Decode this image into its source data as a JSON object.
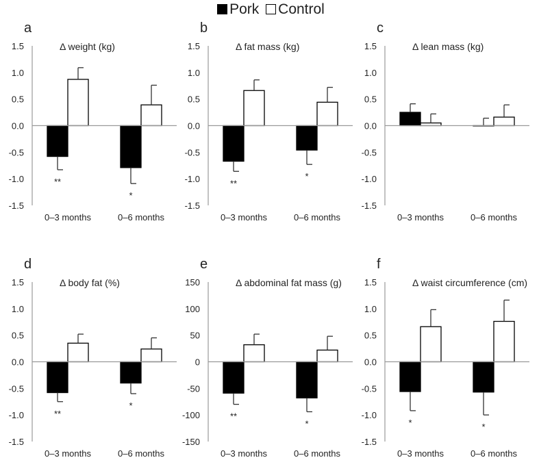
{
  "legend": {
    "pork_label": "Pork",
    "control_label": "Control",
    "pork_color": "#000000",
    "control_color": "#ffffff"
  },
  "chart_data": [
    {
      "type": "bar",
      "letter": "a",
      "title": "Δ weight (kg)",
      "ylim": [
        -1.5,
        1.5
      ],
      "ticks": [
        1.5,
        1.0,
        0.5,
        0.0,
        -0.5,
        -1.0,
        -1.5
      ],
      "tick_labels": [
        "1.5",
        "1.0",
        "0.5",
        "0.0",
        "-0.5",
        "-1.0",
        "-1.5"
      ],
      "categories": [
        "0–3 months",
        "0–6 months"
      ],
      "series": [
        {
          "name": "Pork",
          "values": [
            -0.58,
            -0.79
          ],
          "errors": [
            0.25,
            0.3
          ],
          "significance": [
            "**",
            "*"
          ]
        },
        {
          "name": "Control",
          "values": [
            0.87,
            0.39
          ],
          "errors": [
            0.22,
            0.37
          ],
          "significance": [
            "",
            ""
          ]
        }
      ]
    },
    {
      "type": "bar",
      "letter": "b",
      "title": "Δ fat mass (kg)",
      "ylim": [
        -1.5,
        1.5
      ],
      "ticks": [
        1.5,
        1.0,
        0.5,
        0.0,
        -0.5,
        -1.0,
        -1.5
      ],
      "tick_labels": [
        "1.5",
        "1.0",
        "0.5",
        "0.0",
        "-0.5",
        "-1.0",
        "-1.5"
      ],
      "categories": [
        "0–3 months",
        "0–6 months"
      ],
      "series": [
        {
          "name": "Pork",
          "values": [
            -0.67,
            -0.46
          ],
          "errors": [
            0.19,
            0.27
          ],
          "significance": [
            "**",
            "*"
          ]
        },
        {
          "name": "Control",
          "values": [
            0.66,
            0.44
          ],
          "errors": [
            0.2,
            0.28
          ],
          "significance": [
            "",
            ""
          ]
        }
      ]
    },
    {
      "type": "bar",
      "letter": "c",
      "title": "Δ lean mass (kg)",
      "ylim": [
        -1.5,
        1.5
      ],
      "ticks": [
        1.5,
        1.0,
        0.5,
        0.0,
        -0.5,
        -1.0,
        -1.5
      ],
      "tick_labels": [
        "1.5",
        "1.0",
        "0.5",
        "0.0",
        "-0.5",
        "-1.0",
        "-1.5"
      ],
      "categories": [
        "0–3 months",
        "0–6 months"
      ],
      "series": [
        {
          "name": "Pork",
          "values": [
            0.25,
            0.0
          ],
          "errors": [
            0.16,
            0.14
          ],
          "significance": [
            "",
            ""
          ]
        },
        {
          "name": "Control",
          "values": [
            0.05,
            0.16
          ],
          "errors": [
            0.17,
            0.23
          ],
          "significance": [
            "",
            ""
          ]
        }
      ]
    },
    {
      "type": "bar",
      "letter": "d",
      "title": "Δ body fat (%)",
      "ylim": [
        -1.5,
        1.5
      ],
      "ticks": [
        1.5,
        1.0,
        0.5,
        0.0,
        -0.5,
        -1.0,
        -1.5
      ],
      "tick_labels": [
        "1.5",
        "1.0",
        "0.5",
        "0.0",
        "-0.5",
        "-1.0",
        "-1.5"
      ],
      "categories": [
        "0–3 months",
        "0–6 months"
      ],
      "series": [
        {
          "name": "Pork",
          "values": [
            -0.58,
            -0.4
          ],
          "errors": [
            0.17,
            0.2
          ],
          "significance": [
            "**",
            "*"
          ]
        },
        {
          "name": "Control",
          "values": [
            0.35,
            0.24
          ],
          "errors": [
            0.17,
            0.21
          ],
          "significance": [
            "",
            ""
          ]
        }
      ]
    },
    {
      "type": "bar",
      "letter": "e",
      "title": "Δ abdominal fat mass (g)",
      "ylim": [
        -150,
        150
      ],
      "ticks": [
        150,
        100,
        50,
        0,
        -50,
        -100,
        -150
      ],
      "tick_labels": [
        "150",
        "100",
        "50",
        "0",
        "-50",
        "-100",
        "-150"
      ],
      "categories": [
        "0–3 months",
        "0–6 months"
      ],
      "series": [
        {
          "name": "Pork",
          "values": [
            -59,
            -68
          ],
          "errors": [
            21,
            26
          ],
          "significance": [
            "**",
            "*"
          ]
        },
        {
          "name": "Control",
          "values": [
            32,
            22
          ],
          "errors": [
            20,
            26
          ],
          "significance": [
            "",
            ""
          ]
        }
      ]
    },
    {
      "type": "bar",
      "letter": "f",
      "title": "Δ waist circumference (cm)",
      "ylim": [
        -1.5,
        1.5
      ],
      "ticks": [
        1.5,
        1.0,
        0.5,
        0.0,
        -0.5,
        -1.0,
        -1.5
      ],
      "tick_labels": [
        "1.5",
        "1.0",
        "0.5",
        "0.0",
        "-0.5",
        "-1.0",
        "-1.5"
      ],
      "categories": [
        "0–3 months",
        "0–6 months"
      ],
      "series": [
        {
          "name": "Pork",
          "values": [
            -0.56,
            -0.57
          ],
          "errors": [
            0.36,
            0.43
          ],
          "significance": [
            "*",
            "*"
          ]
        },
        {
          "name": "Control",
          "values": [
            0.66,
            0.76
          ],
          "errors": [
            0.32,
            0.4
          ],
          "significance": [
            "",
            ""
          ]
        }
      ]
    }
  ]
}
